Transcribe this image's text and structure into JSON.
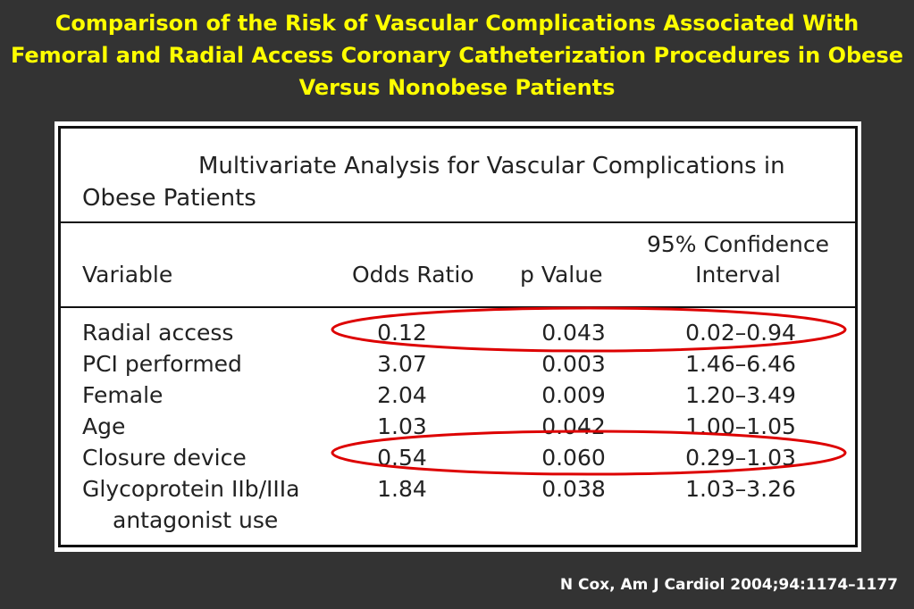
{
  "slide": {
    "title": "Comparison of the Risk of Vascular Complications Associated With Femoral and Radial Access Coronary Catheterization Procedures in Obese Versus Nonobese Patients",
    "citation": "N Cox, Am J Cardiol 2004;94:1174–1177",
    "title_color": "#ffff00",
    "background_color": "#333333",
    "highlight_color": "#dd0000"
  },
  "table": {
    "caption": "Multivariate Analysis for Vascular Complications in Obese Patients",
    "headers": {
      "variable": "Variable",
      "odds_ratio": "Odds Ratio",
      "p_value": "p Value",
      "ci": "95% Confidence Interval"
    },
    "rows": [
      {
        "variable": "Radial access",
        "odds_ratio": "0.12",
        "p_value": "0.043",
        "ci": "0.02–0.94",
        "highlighted": true
      },
      {
        "variable": "PCI performed",
        "odds_ratio": "3.07",
        "p_value": "0.003",
        "ci": "1.46–6.46",
        "highlighted": false
      },
      {
        "variable": "Female",
        "odds_ratio": "2.04",
        "p_value": "0.009",
        "ci": "1.20–3.49",
        "highlighted": false
      },
      {
        "variable": "Age",
        "odds_ratio": "1.03",
        "p_value": "0.042",
        "ci": "1.00–1.05",
        "highlighted": false
      },
      {
        "variable": "Closure device",
        "odds_ratio": "0.54",
        "p_value": "0.060",
        "ci": "0.29–1.03",
        "highlighted": true
      },
      {
        "variable": "Glycoprotein IIb/IIIa",
        "variable_cont": "antagonist use",
        "odds_ratio": "1.84",
        "p_value": "0.038",
        "ci": "1.03–3.26",
        "highlighted": false
      }
    ]
  }
}
